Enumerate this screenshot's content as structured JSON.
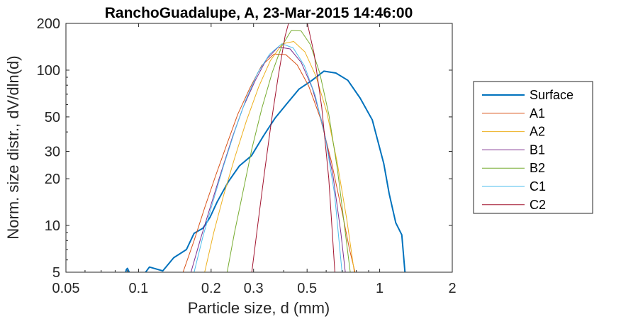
{
  "chart_data": {
    "type": "line",
    "title": "RanchoGuadalupe, A, 23-Mar-2015 14:46:00",
    "xlabel": "Particle size, d (mm)",
    "ylabel": "Norm. size distr., dV/dln(d)",
    "xscale": "log",
    "yscale": "log",
    "xlim": [
      0.05,
      2
    ],
    "ylim": [
      5,
      200
    ],
    "xticks": [
      0.05,
      0.1,
      0.2,
      0.3,
      0.5,
      1,
      2
    ],
    "xtick_labels": [
      "0.05",
      "0.1",
      "0.2",
      "0.3",
      "0.5",
      "1",
      "2"
    ],
    "yticks": [
      5,
      10,
      20,
      30,
      50,
      100,
      200
    ],
    "ytick_labels": [
      "5",
      "10",
      "20",
      "30",
      "50",
      "100",
      "200"
    ],
    "grid": false,
    "legend_position": "right",
    "series": [
      {
        "name": "Surface",
        "color": "#0072BD",
        "width": 2,
        "x": [
          0.088,
          0.089,
          0.09,
          0.092,
          0.106,
          0.111,
          0.126,
          0.14,
          0.158,
          0.17,
          0.185,
          0.198,
          0.212,
          0.236,
          0.262,
          0.294,
          0.33,
          0.368,
          0.413,
          0.463,
          0.52,
          0.587,
          0.658,
          0.738,
          0.83,
          0.932,
          1.04,
          1.095,
          1.166,
          1.235,
          1.276
        ],
        "y": [
          4.8,
          5.2,
          5.3,
          4.9,
          4.9,
          5.4,
          5.1,
          6.2,
          7.0,
          8.9,
          9.6,
          11.3,
          14.2,
          19.2,
          24.2,
          28.1,
          37.8,
          49.0,
          61.0,
          75.5,
          85.2,
          98.5,
          95.8,
          86.0,
          66.0,
          47.8,
          25.0,
          16.0,
          10.4,
          8.7,
          4.8
        ]
      },
      {
        "name": "A1",
        "color": "#D95319",
        "width": 1,
        "x": [
          0.153,
          0.17,
          0.188,
          0.209,
          0.232,
          0.258,
          0.29,
          0.324,
          0.365,
          0.408,
          0.455,
          0.508,
          0.568,
          0.63,
          0.7,
          0.75,
          0.79
        ],
        "y": [
          5.0,
          8.0,
          13.0,
          21.0,
          33.0,
          52.0,
          77.0,
          107.0,
          127.0,
          126.0,
          108.0,
          79.0,
          49.0,
          26.0,
          12.0,
          7.0,
          5.0
        ]
      },
      {
        "name": "A2",
        "color": "#EDB120",
        "width": 1,
        "x": [
          0.188,
          0.205,
          0.225,
          0.25,
          0.28,
          0.315,
          0.352,
          0.395,
          0.44,
          0.49,
          0.545,
          0.605,
          0.665,
          0.73,
          0.785
        ],
        "y": [
          5.0,
          9.0,
          15.5,
          27.0,
          47.0,
          78.0,
          115.0,
          148.0,
          153.0,
          131.0,
          91.0,
          53.0,
          26.0,
          11.0,
          5.0
        ]
      },
      {
        "name": "B1",
        "color": "#7E2F8E",
        "width": 1,
        "x": [
          0.165,
          0.18,
          0.198,
          0.22,
          0.245,
          0.272,
          0.305,
          0.34,
          0.38,
          0.425,
          0.473,
          0.525,
          0.582,
          0.64,
          0.69,
          0.72
        ],
        "y": [
          5.0,
          8.0,
          13.0,
          22.0,
          37.0,
          58.0,
          86.0,
          118.0,
          141.0,
          137.0,
          112.0,
          77.0,
          44.0,
          21.0,
          9.0,
          5.0
        ]
      },
      {
        "name": "B2",
        "color": "#77AC30",
        "width": 1,
        "x": [
          0.233,
          0.25,
          0.27,
          0.295,
          0.325,
          0.358,
          0.393,
          0.43,
          0.472,
          0.516,
          0.564,
          0.615,
          0.668,
          0.72,
          0.755
        ],
        "y": [
          5.0,
          9.0,
          16.0,
          31.0,
          57.0,
          96.0,
          143.0,
          180.0,
          179.0,
          146.0,
          96.0,
          52.0,
          23.0,
          9.0,
          5.0
        ]
      },
      {
        "name": "C1",
        "color": "#4DBEEE",
        "width": 1,
        "x": [
          0.17,
          0.185,
          0.203,
          0.225,
          0.25,
          0.278,
          0.312,
          0.35,
          0.393,
          0.438,
          0.487,
          0.54,
          0.595,
          0.65,
          0.698
        ],
        "y": [
          5.0,
          8.5,
          14.0,
          24.0,
          40.0,
          64.0,
          96.0,
          127.0,
          148.0,
          139.0,
          107.0,
          69.0,
          37.0,
          16.0,
          5.0
        ]
      },
      {
        "name": "C2",
        "color": "#A2142F",
        "width": 1,
        "x": [
          0.295,
          0.312,
          0.333,
          0.355,
          0.38,
          0.405,
          0.432,
          0.463,
          0.498,
          0.535,
          0.575,
          0.615,
          0.652
        ],
        "y": [
          5.0,
          10.0,
          22.0,
          46.0,
          92.0,
          165.0,
          240.0,
          270.0,
          210.0,
          127.0,
          58.0,
          20.0,
          5.0
        ]
      }
    ]
  }
}
